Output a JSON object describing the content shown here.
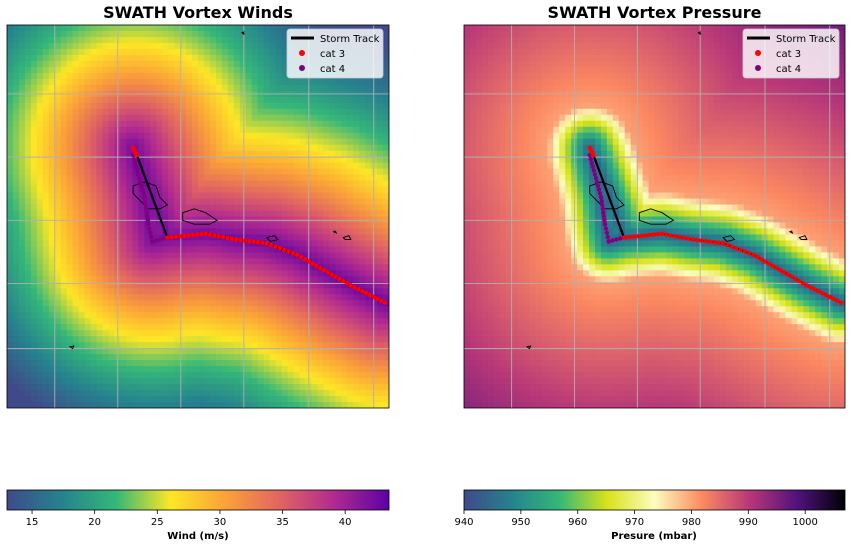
{
  "chart_data": [
    {
      "type": "heatmap",
      "title": "SWATH Vortex Winds",
      "colorbar": {
        "label": "Wind (m/s)",
        "colormap": "custom viridis-to-plasma",
        "range": [
          13,
          43.5
        ],
        "ticks": [
          "15",
          "20",
          "25",
          "30",
          "35",
          "40"
        ],
        "tick_values": [
          15,
          20,
          25,
          30,
          35,
          40
        ],
        "stops": [
          "#3f4a8a",
          "#26828e",
          "#35b779",
          "#fde725",
          "#fba238",
          "#e16462",
          "#b12a90",
          "#5c01a6"
        ]
      },
      "legend": {
        "placement": "top-right",
        "entries": [
          {
            "label": "Storm Track",
            "marker": "line",
            "color": "#000000"
          },
          {
            "label": "cat 3",
            "marker": "dot",
            "color": "#ff0000"
          },
          {
            "label": "cat 4",
            "marker": "dot",
            "color": "#800080"
          }
        ]
      },
      "grid": true,
      "field": "distance-based radial wind swath centered on storm track"
    },
    {
      "type": "heatmap",
      "title": "SWATH Vortex Pressure",
      "colorbar": {
        "label": "Presure (mbar)",
        "colormap": "custom viridis-to-magma",
        "range": [
          940,
          1007
        ],
        "ticks": [
          "940",
          "950",
          "960",
          "970",
          "980",
          "990",
          "1000"
        ],
        "tick_values": [
          940,
          950,
          960,
          970,
          980,
          990,
          1000
        ],
        "stops": [
          "#3f4a8a",
          "#26828e",
          "#35b779",
          "#d8e219",
          "#fcfdbf",
          "#fc8961",
          "#b73779",
          "#51127c",
          "#000004"
        ]
      },
      "legend": {
        "placement": "top-right",
        "entries": [
          {
            "label": "Storm Track",
            "marker": "line",
            "color": "#000000"
          },
          {
            "label": "cat 3",
            "marker": "dot",
            "color": "#ff0000"
          },
          {
            "label": "cat 4",
            "marker": "dot",
            "color": "#800080"
          }
        ]
      },
      "grid": true,
      "field": "distance-based radial pressure swath centered on storm track"
    }
  ],
  "storm_track": {
    "cat4_segment": [
      [
        0.33,
        0.34
      ],
      [
        0.36,
        0.45
      ],
      [
        0.37,
        0.52
      ],
      [
        0.38,
        0.565
      ],
      [
        0.42,
        0.555
      ]
    ],
    "cat3_segment": [
      [
        0.33,
        0.32
      ],
      [
        0.34,
        0.34
      ],
      [
        0.42,
        0.555
      ],
      [
        0.52,
        0.545
      ],
      [
        0.6,
        0.56
      ],
      [
        0.68,
        0.57
      ],
      [
        0.76,
        0.6
      ],
      [
        0.83,
        0.64
      ],
      [
        0.9,
        0.68
      ],
      [
        0.96,
        0.71
      ],
      [
        0.99,
        0.725
      ]
    ]
  }
}
